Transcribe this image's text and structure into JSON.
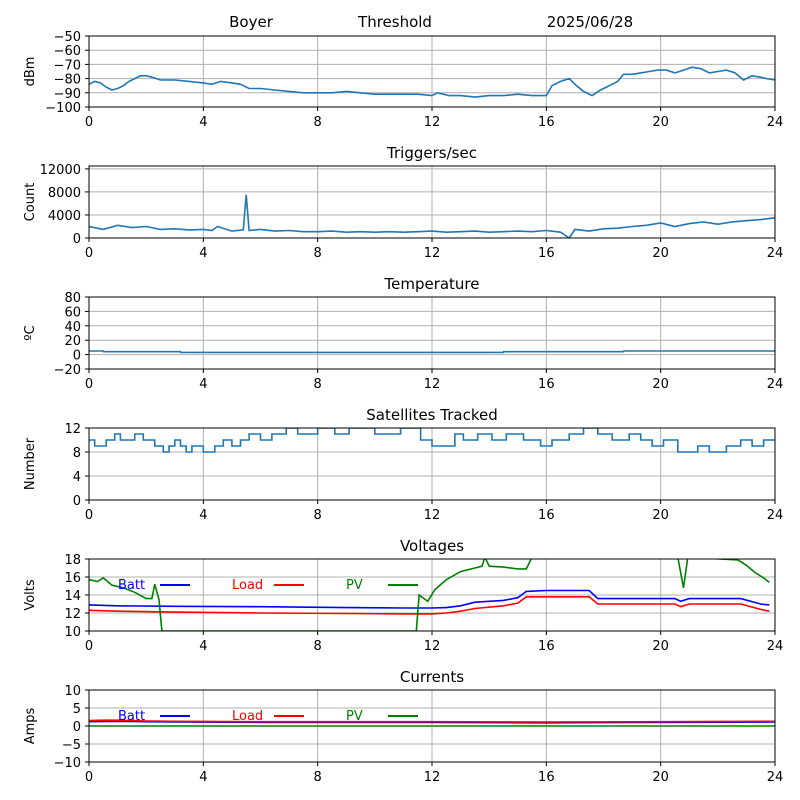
{
  "header": {
    "station": "Boyer",
    "mode": "Threshold",
    "date": "2025/06/28"
  },
  "colors": {
    "series": "#1f77b4",
    "batt": "#0000ff",
    "load": "#ff0000",
    "pv": "#008000",
    "grid": "#b0b0b0"
  },
  "chart_data": [
    {
      "id": "threshold",
      "type": "line",
      "title": "",
      "xlabel": "",
      "ylabel": "dBm",
      "xlim": [
        0,
        24
      ],
      "ylim": [
        -100,
        -50
      ],
      "xticks": [
        0,
        4,
        8,
        12,
        16,
        20,
        24
      ],
      "yticks": [
        -100,
        -90,
        -80,
        -70,
        -60,
        -50
      ],
      "grid": true,
      "series": [
        {
          "color": "#1f77b4",
          "x": [
            0,
            0.2,
            0.4,
            0.6,
            0.8,
            1.0,
            1.2,
            1.4,
            1.6,
            1.8,
            2.0,
            2.2,
            2.5,
            3.0,
            3.5,
            4.0,
            4.3,
            4.6,
            5.0,
            5.3,
            5.6,
            6.0,
            6.5,
            7.0,
            7.5,
            8.0,
            8.5,
            9.0,
            9.5,
            10.0,
            10.5,
            11.0,
            11.5,
            12.0,
            12.2,
            12.4,
            12.6,
            13.0,
            13.5,
            14.0,
            14.5,
            15.0,
            15.5,
            16.0,
            16.2,
            16.5,
            16.8,
            17.0,
            17.3,
            17.6,
            17.9,
            18.1,
            18.3,
            18.5,
            18.7,
            19.0,
            19.3,
            19.6,
            19.9,
            20.2,
            20.5,
            20.8,
            21.1,
            21.4,
            21.7,
            22.0,
            22.3,
            22.6,
            22.9,
            23.2,
            23.5,
            23.7,
            24.0
          ],
          "y": [
            -84,
            -82,
            -83,
            -86,
            -88,
            -87,
            -85,
            -82,
            -80,
            -78,
            -78,
            -79,
            -81,
            -81,
            -82,
            -83,
            -84,
            -82,
            -83,
            -84,
            -87,
            -87,
            -88,
            -89,
            -90,
            -90,
            -90,
            -89,
            -90,
            -91,
            -91,
            -91,
            -91,
            -92,
            -90,
            -91,
            -92,
            -92,
            -93,
            -92,
            -92,
            -91,
            -92,
            -92,
            -85,
            -82,
            -80,
            -84,
            -89,
            -92,
            -88,
            -86,
            -84,
            -82,
            -77,
            -77,
            -76,
            -75,
            -74,
            -74,
            -76,
            -74,
            -72,
            -73,
            -76,
            -75,
            -74,
            -76,
            -81,
            -78,
            -79,
            -80,
            -81
          ]
        }
      ]
    },
    {
      "id": "triggers",
      "type": "line",
      "title": "Triggers/sec",
      "xlabel": "",
      "ylabel": "Count",
      "xlim": [
        0,
        24
      ],
      "ylim": [
        0,
        12500
      ],
      "xticks": [
        0,
        4,
        8,
        12,
        16,
        20,
        24
      ],
      "yticks": [
        0,
        4000,
        8000,
        12000
      ],
      "grid": true,
      "series": [
        {
          "color": "#1f77b4",
          "x": [
            0,
            0.5,
            1.0,
            1.5,
            2.0,
            2.5,
            3.0,
            3.5,
            4.0,
            4.3,
            4.5,
            5.0,
            5.4,
            5.5,
            5.6,
            6.0,
            6.5,
            7.0,
            7.5,
            8.0,
            8.5,
            9.0,
            9.5,
            10.0,
            10.5,
            11.0,
            11.5,
            12.0,
            12.5,
            13.0,
            13.5,
            14.0,
            14.5,
            15.0,
            15.5,
            16.0,
            16.5,
            16.8,
            17.0,
            17.5,
            18.0,
            18.5,
            19.0,
            19.5,
            20.0,
            20.5,
            21.0,
            21.5,
            22.0,
            22.5,
            23.0,
            23.5,
            24.0
          ],
          "y": [
            2000,
            1500,
            2200,
            1800,
            2000,
            1500,
            1600,
            1400,
            1500,
            1300,
            2000,
            1200,
            1400,
            7500,
            1300,
            1500,
            1200,
            1300,
            1100,
            1100,
            1200,
            1000,
            1100,
            1000,
            1100,
            1000,
            1100,
            1200,
            1000,
            1100,
            1200,
            1000,
            1100,
            1200,
            1100,
            1300,
            1000,
            0,
            1500,
            1200,
            1600,
            1700,
            2000,
            2200,
            2600,
            2000,
            2500,
            2800,
            2400,
            2800,
            3000,
            3200,
            3500
          ]
        }
      ]
    },
    {
      "id": "temperature",
      "type": "line",
      "title": "Temperature",
      "xlabel": "",
      "ylabel": "ºC",
      "xlim": [
        0,
        24
      ],
      "ylim": [
        -20,
        80
      ],
      "xticks": [
        0,
        4,
        8,
        12,
        16,
        20,
        24
      ],
      "yticks": [
        -20,
        0,
        20,
        40,
        60,
        80
      ],
      "grid": true,
      "series": [
        {
          "color": "#1f77b4",
          "x": [
            0,
            0.5,
            0.51,
            3.2,
            3.21,
            14.5,
            14.51,
            18.7,
            18.71,
            24
          ],
          "y": [
            5,
            5,
            4,
            4,
            3,
            3,
            4,
            4,
            5,
            5
          ]
        }
      ]
    },
    {
      "id": "satellites",
      "type": "line",
      "title": "Satellites Tracked",
      "xlabel": "",
      "ylabel": "Number",
      "xlim": [
        0,
        24
      ],
      "ylim": [
        0,
        12
      ],
      "xticks": [
        0,
        4,
        8,
        12,
        16,
        20,
        24
      ],
      "yticks": [
        0,
        4,
        8,
        12
      ],
      "grid": true,
      "series": [
        {
          "color": "#1f77b4",
          "x": [
            0,
            0.2,
            0.2,
            0.6,
            0.6,
            0.9,
            0.9,
            1.1,
            1.1,
            1.6,
            1.6,
            1.9,
            1.9,
            2.3,
            2.3,
            2.6,
            2.6,
            2.8,
            2.8,
            3.0,
            3.0,
            3.2,
            3.2,
            3.4,
            3.4,
            3.6,
            3.6,
            4.0,
            4.0,
            4.4,
            4.4,
            4.7,
            4.7,
            5.0,
            5.0,
            5.3,
            5.3,
            5.6,
            5.6,
            6.0,
            6.0,
            6.4,
            6.4,
            6.9,
            6.9,
            7.3,
            7.3,
            8.0,
            8.0,
            8.6,
            8.6,
            9.1,
            9.1,
            10.0,
            10.0,
            10.9,
            10.9,
            11.6,
            11.6,
            12.0,
            12.0,
            12.8,
            12.8,
            13.1,
            13.1,
            13.6,
            13.6,
            14.1,
            14.1,
            14.6,
            14.6,
            15.2,
            15.2,
            15.8,
            15.8,
            16.2,
            16.2,
            16.8,
            16.8,
            17.3,
            17.3,
            17.8,
            17.8,
            18.3,
            18.3,
            18.9,
            18.9,
            19.3,
            19.3,
            19.7,
            19.7,
            20.1,
            20.1,
            20.6,
            20.6,
            21.3,
            21.3,
            21.7,
            21.7,
            22.3,
            22.3,
            22.8,
            22.8,
            23.2,
            23.2,
            23.6,
            23.6,
            24.0
          ],
          "y": [
            10,
            10,
            9,
            9,
            10,
            10,
            11,
            11,
            10,
            10,
            11,
            11,
            10,
            10,
            9,
            9,
            8,
            8,
            9,
            9,
            10,
            10,
            9,
            9,
            8,
            8,
            9,
            9,
            8,
            8,
            9,
            9,
            10,
            10,
            9,
            9,
            10,
            10,
            11,
            11,
            10,
            10,
            11,
            11,
            12,
            12,
            11,
            11,
            12,
            12,
            11,
            11,
            12,
            12,
            11,
            11,
            12,
            12,
            10,
            10,
            9,
            9,
            11,
            11,
            10,
            10,
            11,
            11,
            10,
            10,
            11,
            11,
            10,
            10,
            9,
            9,
            10,
            10,
            11,
            11,
            12,
            12,
            11,
            11,
            10,
            10,
            11,
            11,
            10,
            10,
            9,
            9,
            10,
            10,
            8,
            8,
            9,
            9,
            8,
            8,
            9,
            9,
            10,
            10,
            9,
            9,
            10,
            10
          ]
        }
      ]
    },
    {
      "id": "voltages",
      "type": "line",
      "title": "Voltages",
      "xlabel": "",
      "ylabel": "Volts",
      "xlim": [
        0,
        24
      ],
      "ylim": [
        10,
        18
      ],
      "xticks": [
        0,
        4,
        8,
        12,
        16,
        20,
        24
      ],
      "yticks": [
        10,
        12,
        14,
        16,
        18
      ],
      "grid": true,
      "legend": [
        "Batt",
        "Load",
        "PV"
      ],
      "series": [
        {
          "name": "Batt",
          "color": "#0000ff",
          "x": [
            0,
            1,
            3,
            6,
            9,
            11,
            12,
            12.5,
            13,
            13.5,
            14.5,
            15.0,
            15.3,
            16.0,
            17.5,
            17.8,
            20.5,
            20.7,
            21.0,
            22.8,
            23.5,
            23.8
          ],
          "y": [
            12.9,
            12.8,
            12.75,
            12.7,
            12.6,
            12.55,
            12.55,
            12.6,
            12.8,
            13.2,
            13.4,
            13.7,
            14.4,
            14.5,
            14.5,
            13.6,
            13.6,
            13.3,
            13.6,
            13.6,
            13.0,
            12.9
          ]
        },
        {
          "name": "Load",
          "color": "#ff0000",
          "x": [
            0,
            1,
            3,
            6,
            9,
            11,
            12,
            12.5,
            13,
            13.5,
            14.5,
            15.0,
            15.3,
            16.0,
            17.5,
            17.8,
            20.5,
            20.7,
            21.0,
            22.8,
            23.5,
            23.8
          ],
          "y": [
            12.3,
            12.2,
            12.1,
            12.0,
            11.95,
            11.9,
            11.9,
            12.0,
            12.2,
            12.5,
            12.8,
            13.1,
            13.8,
            13.8,
            13.8,
            13.0,
            13.0,
            12.7,
            13.0,
            13.0,
            12.4,
            12.2
          ]
        },
        {
          "name": "PV",
          "color": "#008000",
          "x": [
            0,
            0.3,
            0.5,
            0.8,
            1.2,
            1.6,
            2.0,
            2.2,
            2.3,
            2.45,
            2.55,
            11.45,
            11.55,
            11.85,
            12.1,
            12.5,
            13.0,
            13.5,
            13.75,
            13.85,
            14.0,
            14.5,
            15.0,
            15.3,
            15.5,
            20.6,
            20.8,
            20.95,
            22.7,
            23.0,
            23.3,
            23.6,
            23.8
          ],
          "y": [
            15.7,
            15.5,
            15.9,
            15.1,
            14.8,
            14.3,
            13.6,
            13.6,
            15.2,
            13.5,
            10.0,
            10.0,
            14.0,
            13.3,
            14.6,
            15.7,
            16.6,
            17.0,
            17.2,
            18.2,
            17.2,
            17.1,
            16.9,
            16.9,
            18.2,
            18.2,
            14.8,
            18.2,
            17.9,
            17.3,
            16.5,
            15.9,
            15.4
          ]
        }
      ]
    },
    {
      "id": "currents",
      "type": "line",
      "title": "Currents",
      "xlabel": "",
      "ylabel": "Amps",
      "xlim": [
        0,
        24
      ],
      "ylim": [
        -10,
        10
      ],
      "xticks": [
        0,
        4,
        8,
        12,
        16,
        20,
        24
      ],
      "yticks": [
        -10,
        -5,
        0,
        5,
        10
      ],
      "grid": true,
      "legend": [
        "Batt",
        "Load",
        "PV"
      ],
      "series": [
        {
          "name": "Batt",
          "color": "#0000ff",
          "x": [
            0,
            1,
            2,
            3,
            6,
            12,
            16,
            20,
            24
          ],
          "y": [
            1.2,
            1.3,
            1.2,
            1.1,
            1.0,
            1.0,
            0.9,
            1.0,
            1.1
          ]
        },
        {
          "name": "Load",
          "color": "#ff0000",
          "x": [
            0,
            0.5,
            1,
            1.5,
            2,
            3,
            6,
            12,
            16,
            20,
            24
          ],
          "y": [
            1.5,
            1.6,
            1.6,
            1.5,
            1.4,
            1.3,
            1.2,
            1.2,
            1.1,
            1.2,
            1.3
          ]
        },
        {
          "name": "PV",
          "color": "#008000",
          "x": [
            0,
            24
          ],
          "y": [
            0,
            0
          ]
        }
      ]
    }
  ]
}
